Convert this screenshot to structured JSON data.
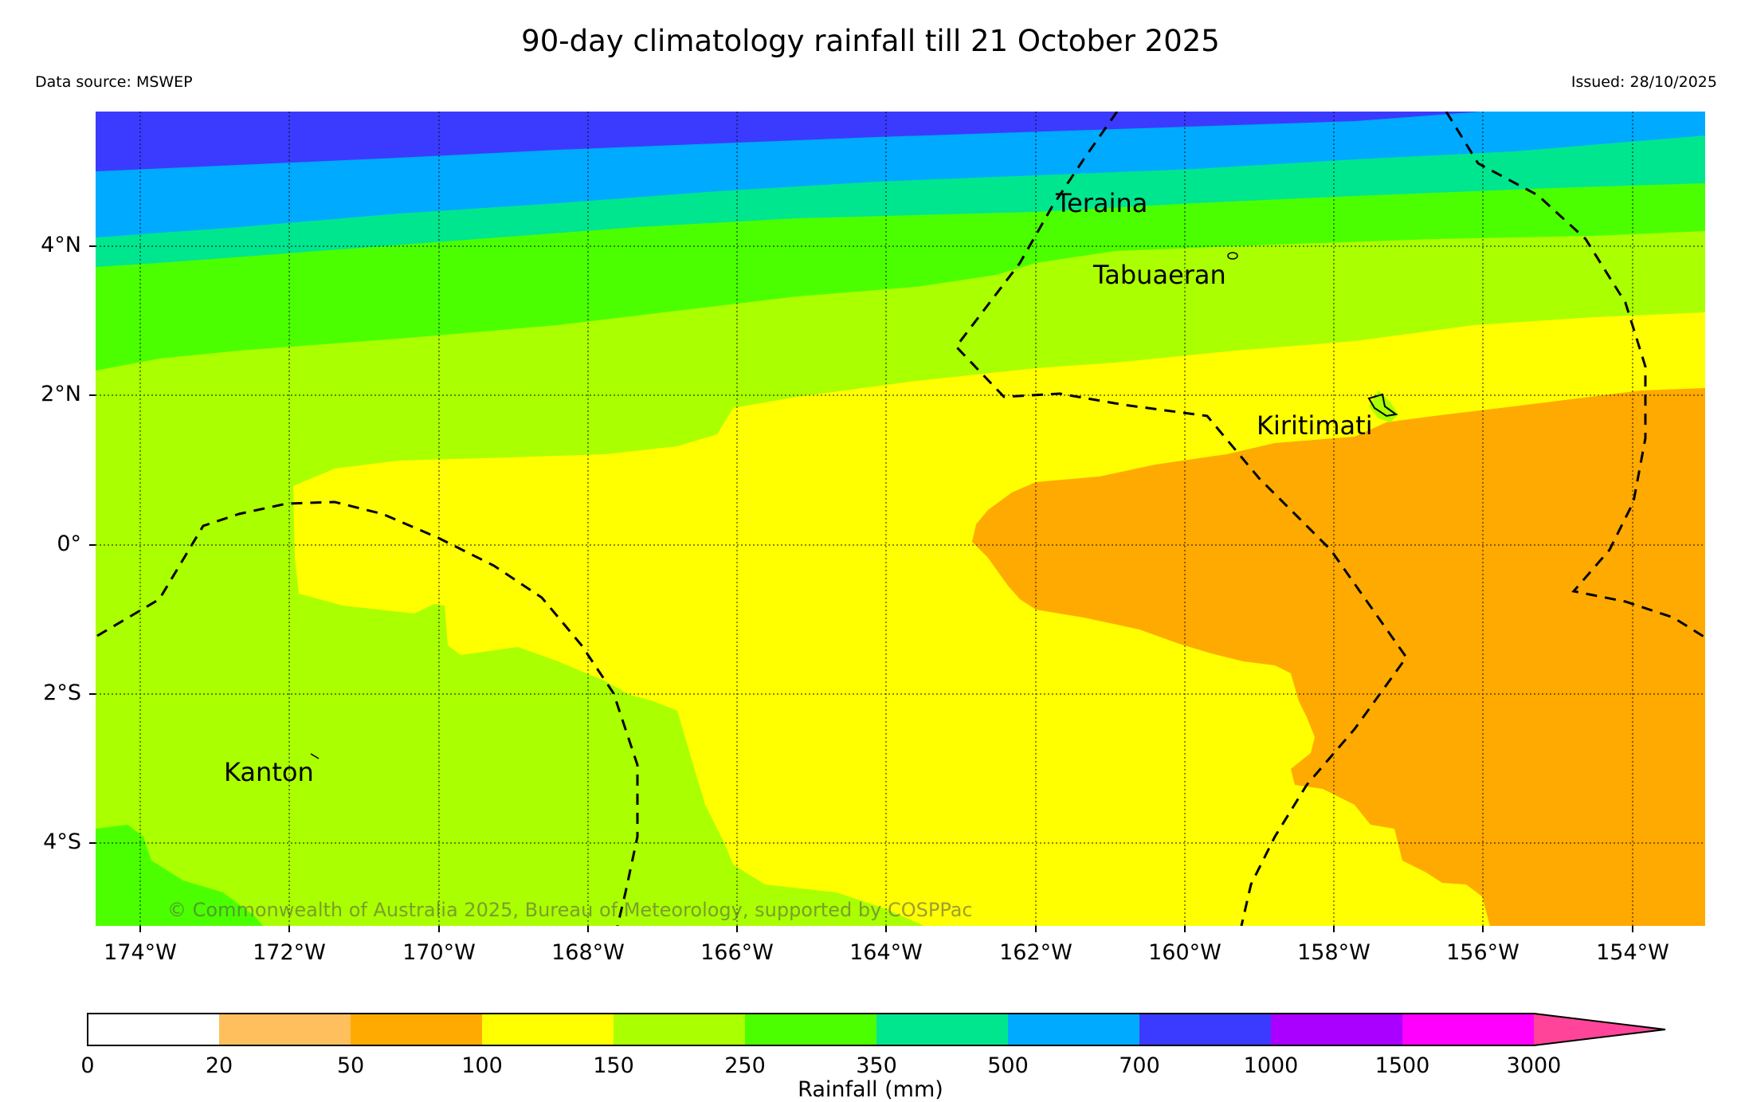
{
  "header": {
    "title": "90-day climatology rainfall till 21 October 2025",
    "data_source": "Data source: MSWEP",
    "issued": "Issued: 28/10/2025"
  },
  "map": {
    "lat_labels": [
      "4°N",
      "2°N",
      "0°",
      "2°S",
      "4°S"
    ],
    "lon_labels": [
      "174°W",
      "172°W",
      "170°W",
      "168°W",
      "166°W",
      "164°W",
      "162°W",
      "160°W",
      "158°W",
      "156°W",
      "154°W"
    ],
    "places": {
      "teraina": "Teraina",
      "tabuaeran": "Tabuaeran",
      "kiritimati": "Kiritimati",
      "kanton": "Kanton"
    },
    "copyright": "© Commonwealth of Australia 2025, Bureau of Meteorology, supported by COSPPac"
  },
  "colorbar": {
    "title": "Rainfall (mm)",
    "ticks": [
      "0",
      "20",
      "50",
      "100",
      "150",
      "250",
      "350",
      "500",
      "700",
      "1000",
      "1500",
      "3000"
    ],
    "colors": {
      "0-20": "#ffffff",
      "20-50": "#ffbf5c",
      "50-100": "#ffaa00",
      "100-150": "#ffff00",
      "150-250": "#aaff00",
      "250-350": "#4cff00",
      "350-500": "#00e68f",
      "500-700": "#00aaff",
      "700-1000": "#3b3bff",
      "1000-1500": "#aa00ff",
      "1500-3000": "#ff00ff",
      "3000+": "#ff4499"
    }
  }
}
